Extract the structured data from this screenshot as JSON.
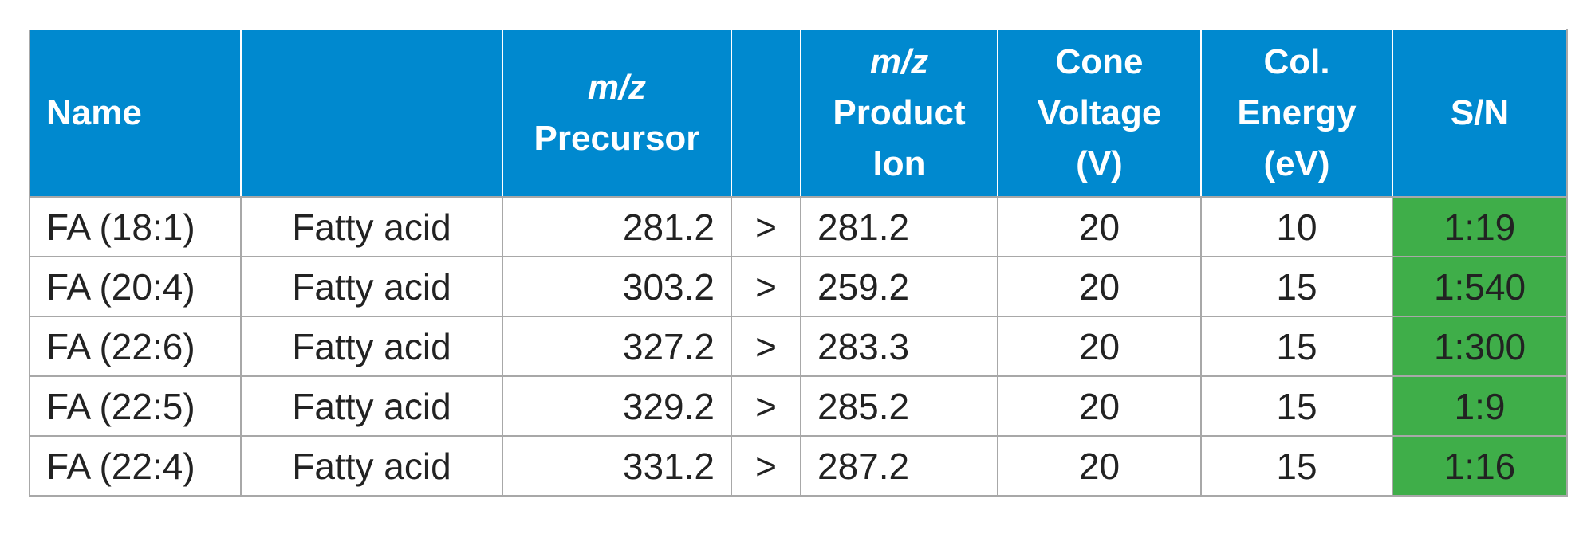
{
  "table": {
    "header": [
      {
        "lines": [
          "Name"
        ]
      },
      {
        "italic": "m/z",
        "lines": [
          "Precursor"
        ]
      },
      {
        "italic": "m/z",
        "lines": [
          "Product",
          "Ion"
        ]
      },
      {
        "lines": [
          "Cone",
          "Voltage",
          "(V)"
        ]
      },
      {
        "lines": [
          "Col.",
          "Energy",
          "(eV)"
        ]
      },
      {
        "lines": [
          "S/N"
        ]
      }
    ],
    "rows": [
      [
        "FA (18:1)",
        "Fatty acid",
        281.2,
        ">",
        281.2,
        20,
        10,
        "1:19"
      ],
      [
        "FA (20:4)",
        "Fatty acid",
        303.2,
        ">",
        259.2,
        20,
        15,
        "1:540"
      ],
      [
        "FA (22:6)",
        "Fatty acid",
        327.2,
        ">",
        283.3,
        20,
        15,
        "1:300"
      ],
      [
        "FA (22:5)",
        "Fatty acid",
        329.2,
        ">",
        285.2,
        20,
        15,
        "1:9"
      ],
      [
        "FA (22:4)",
        "Fatty acid",
        331.2,
        ">",
        287.2,
        20,
        15,
        "1:16"
      ]
    ]
  }
}
